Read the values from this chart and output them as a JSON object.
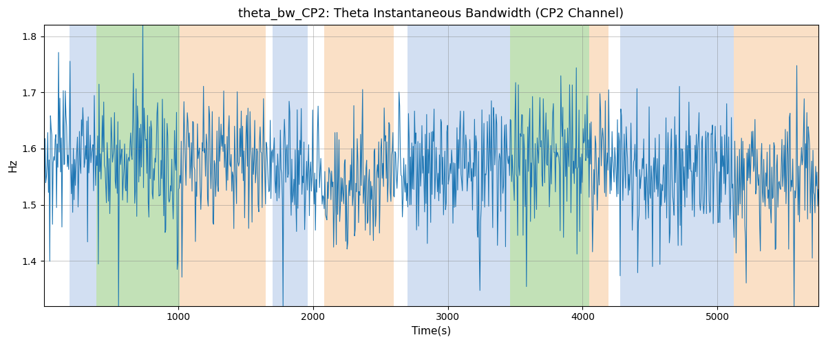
{
  "title": "theta_bw_CP2: Theta Instantaneous Bandwidth (CP2 Channel)",
  "xlabel": "Time(s)",
  "ylabel": "Hz",
  "xlim": [
    0,
    5750
  ],
  "ylim": [
    1.32,
    1.82
  ],
  "yticks": [
    1.4,
    1.5,
    1.6,
    1.7,
    1.8
  ],
  "xticks": [
    1000,
    2000,
    3000,
    4000,
    5000
  ],
  "line_color": "#1f77b4",
  "line_width": 0.8,
  "grid": true,
  "background_color": "#ffffff",
  "colored_bands": [
    {
      "xmin": 190,
      "xmax": 390,
      "color": "#aec6e8",
      "alpha": 0.55
    },
    {
      "xmin": 390,
      "xmax": 1010,
      "color": "#90c97c",
      "alpha": 0.55
    },
    {
      "xmin": 1010,
      "xmax": 1650,
      "color": "#f7c897",
      "alpha": 0.55
    },
    {
      "xmin": 1700,
      "xmax": 1960,
      "color": "#aec6e8",
      "alpha": 0.55
    },
    {
      "xmin": 2080,
      "xmax": 2600,
      "color": "#f7c897",
      "alpha": 0.55
    },
    {
      "xmin": 2700,
      "xmax": 3460,
      "color": "#aec6e8",
      "alpha": 0.55
    },
    {
      "xmin": 3460,
      "xmax": 4050,
      "color": "#90c97c",
      "alpha": 0.55
    },
    {
      "xmin": 4050,
      "xmax": 4190,
      "color": "#f7c897",
      "alpha": 0.55
    },
    {
      "xmin": 4280,
      "xmax": 5120,
      "color": "#aec6e8",
      "alpha": 0.55
    },
    {
      "xmin": 5120,
      "xmax": 5750,
      "color": "#f7c897",
      "alpha": 0.55
    }
  ],
  "seed": 1234,
  "n_points": 1150,
  "t_start": 0,
  "t_end": 5750,
  "base_value": 1.565,
  "noise_std": 0.055
}
